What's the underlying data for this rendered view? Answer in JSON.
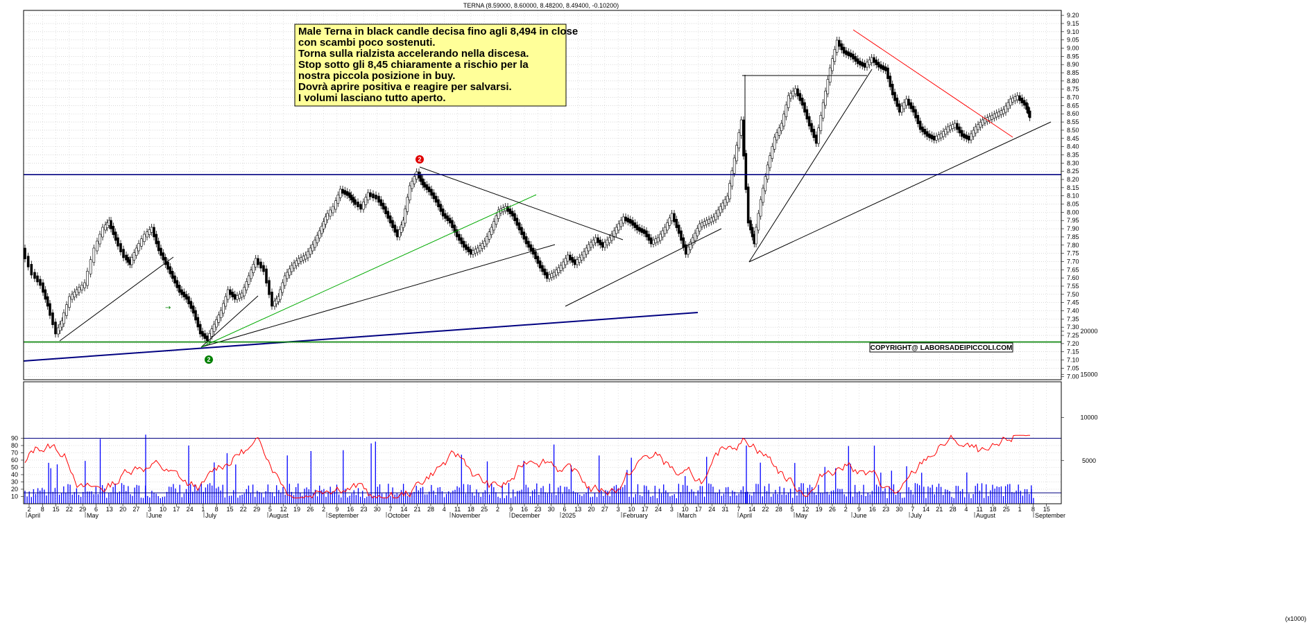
{
  "header": "TERNA (8.59000, 8.60000, 8.48200, 8.49400, -0.10200)",
  "annotation": {
    "lines": [
      "Male Terna in black candle decisa fino agli 8,494 in close",
      "con scambi poco sostenuti.",
      "Torna sulla rialzista accelerando nella discesa.",
      "Stop sotto gli 8,45 chiaramente a rischio per la",
      "nostra piccola posizione in buy.",
      "Dovrà aprire positiva e reagire per salvarsi.",
      "I volumi lasciano tutto aperto."
    ],
    "bg_color": "#ffff99"
  },
  "copyright": "COPYRIGHT@ LABORSADEIPICCOLI.COM",
  "volume_unit": "(x1000)",
  "markers": [
    "2",
    "2"
  ],
  "colors": {
    "grid": "#c0c0c0",
    "price": "#000000",
    "resistance": "#000080",
    "support": "#008000",
    "down_trend": "#ff0000",
    "rising_channel": "#00aa00",
    "oscillator": "#ff0000",
    "volume": "#0000ff"
  },
  "chart_data": [
    {
      "type": "candlestick",
      "title": "TERNA (8.59000, 8.60000, 8.48200, 8.49400, -0.10200)",
      "ylim": [
        6.98,
        9.23
      ],
      "y_ticks": [
        "7.00",
        "7.05",
        "7.10",
        "7.15",
        "7.20",
        "7.25",
        "7.30",
        "7.35",
        "7.40",
        "7.45",
        "7.50",
        "7.55",
        "7.60",
        "7.65",
        "7.70",
        "7.75",
        "7.80",
        "7.85",
        "7.90",
        "7.95",
        "8.00",
        "8.05",
        "8.10",
        "8.15",
        "8.20",
        "8.25",
        "8.30",
        "8.35",
        "8.40",
        "8.45",
        "8.50",
        "8.55",
        "8.60",
        "8.65",
        "8.70",
        "8.75",
        "8.80",
        "8.85",
        "8.90",
        "8.95",
        "9.00",
        "9.05",
        "9.10",
        "9.15",
        "9.20"
      ],
      "horizontal_levels": [
        {
          "value": 8.23,
          "color": "#000080"
        },
        {
          "value": 7.21,
          "color": "#008000"
        }
      ],
      "last_bar": {
        "open": 8.59,
        "high": 8.6,
        "low": 8.482,
        "close": 8.494,
        "change": -0.102
      },
      "grid": true
    },
    {
      "type": "line",
      "series_oscillator": {
        "ylim": [
          0,
          100
        ],
        "y_ticks": [
          "10",
          "20",
          "30",
          "40",
          "50",
          "60",
          "70",
          "80",
          "90"
        ],
        "levels": [
          90,
          15
        ]
      },
      "series_volume": {
        "type": "bar",
        "ylim": [
          0,
          20000
        ],
        "y_ticks": [
          "5000",
          "10000",
          "15000",
          "20000"
        ]
      },
      "x_ticks": [
        "2",
        "8",
        "15",
        "22",
        "29",
        "6",
        "13",
        "20",
        "27",
        "3",
        "10",
        "17",
        "24",
        "1",
        "8",
        "15",
        "22",
        "29",
        "5",
        "12",
        "19",
        "26",
        "2",
        "9",
        "16",
        "23",
        "30",
        "7",
        "14",
        "21",
        "28",
        "4",
        "11",
        "18",
        "25",
        "2",
        "9",
        "16",
        "23",
        "30",
        "6",
        "13",
        "20",
        "27",
        "3",
        "10",
        "17",
        "24",
        "3",
        "10",
        "17",
        "24",
        "31",
        "7",
        "14",
        "22",
        "28",
        "5",
        "12",
        "19",
        "26",
        "2",
        "9",
        "16",
        "23",
        "30",
        "7",
        "14",
        "21",
        "28",
        "4",
        "11",
        "18",
        "25",
        "1",
        "8",
        "15"
      ],
      "month_labels": [
        "April",
        "May",
        "June",
        "July",
        "August",
        "September",
        "October",
        "November",
        "December",
        "2025",
        "February",
        "March",
        "April",
        "May",
        "June",
        "July",
        "August",
        "September"
      ]
    }
  ]
}
